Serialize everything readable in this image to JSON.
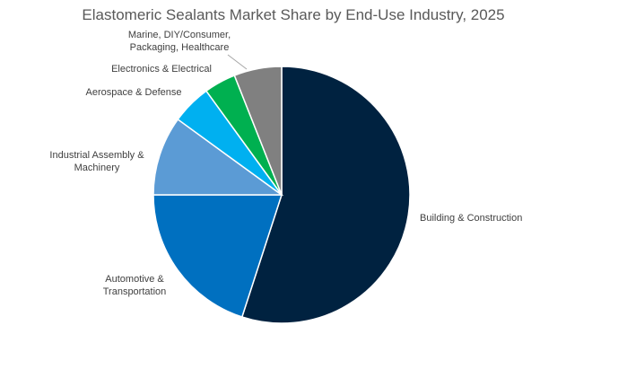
{
  "chart_data": {
    "type": "pie",
    "title": "Elastomeric Sealants Market Share by End-Use Industry, 2025",
    "slices": [
      {
        "label": "Building & Construction",
        "label_lines": [
          "Building & Construction"
        ],
        "value": 55.0,
        "color": "#002240"
      },
      {
        "label": "Automotive & Transportation",
        "label_lines": [
          "Automotive &",
          "Transportation"
        ],
        "value": 20.0,
        "color": "#0070c0"
      },
      {
        "label": "Industrial Assembly & Machinery",
        "label_lines": [
          "Industrial Assembly &",
          "Machinery"
        ],
        "value": 10.0,
        "color": "#5b9bd5"
      },
      {
        "label": "Aerospace & Defense",
        "label_lines": [
          "Aerospace & Defense"
        ],
        "value": 5.0,
        "color": "#00b0f0"
      },
      {
        "label": "Electronics & Electrical",
        "label_lines": [
          "Electronics & Electrical"
        ],
        "value": 4.0,
        "color": "#00b050"
      },
      {
        "label": "Marine, DIY/Consumer, Packaging, Healthcare",
        "label_lines": [
          "Marine, DIY/Consumer,",
          "Packaging, Healthcare"
        ],
        "value": 6.0,
        "color": "#808080"
      }
    ],
    "legend": "none",
    "start": "top, clockwise"
  }
}
